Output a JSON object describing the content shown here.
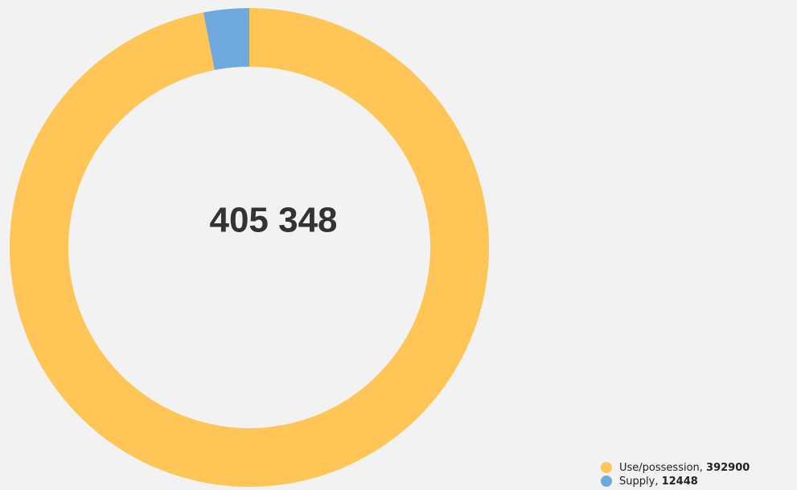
{
  "chart_data": {
    "type": "donut",
    "center_label": "405 348",
    "series": [
      {
        "name": "Use/possession",
        "color": "#ffc557",
        "values": [
          392900
        ]
      },
      {
        "name": "Supply",
        "color": "#6fa8dc",
        "values": [
          12448
        ]
      }
    ]
  }
}
